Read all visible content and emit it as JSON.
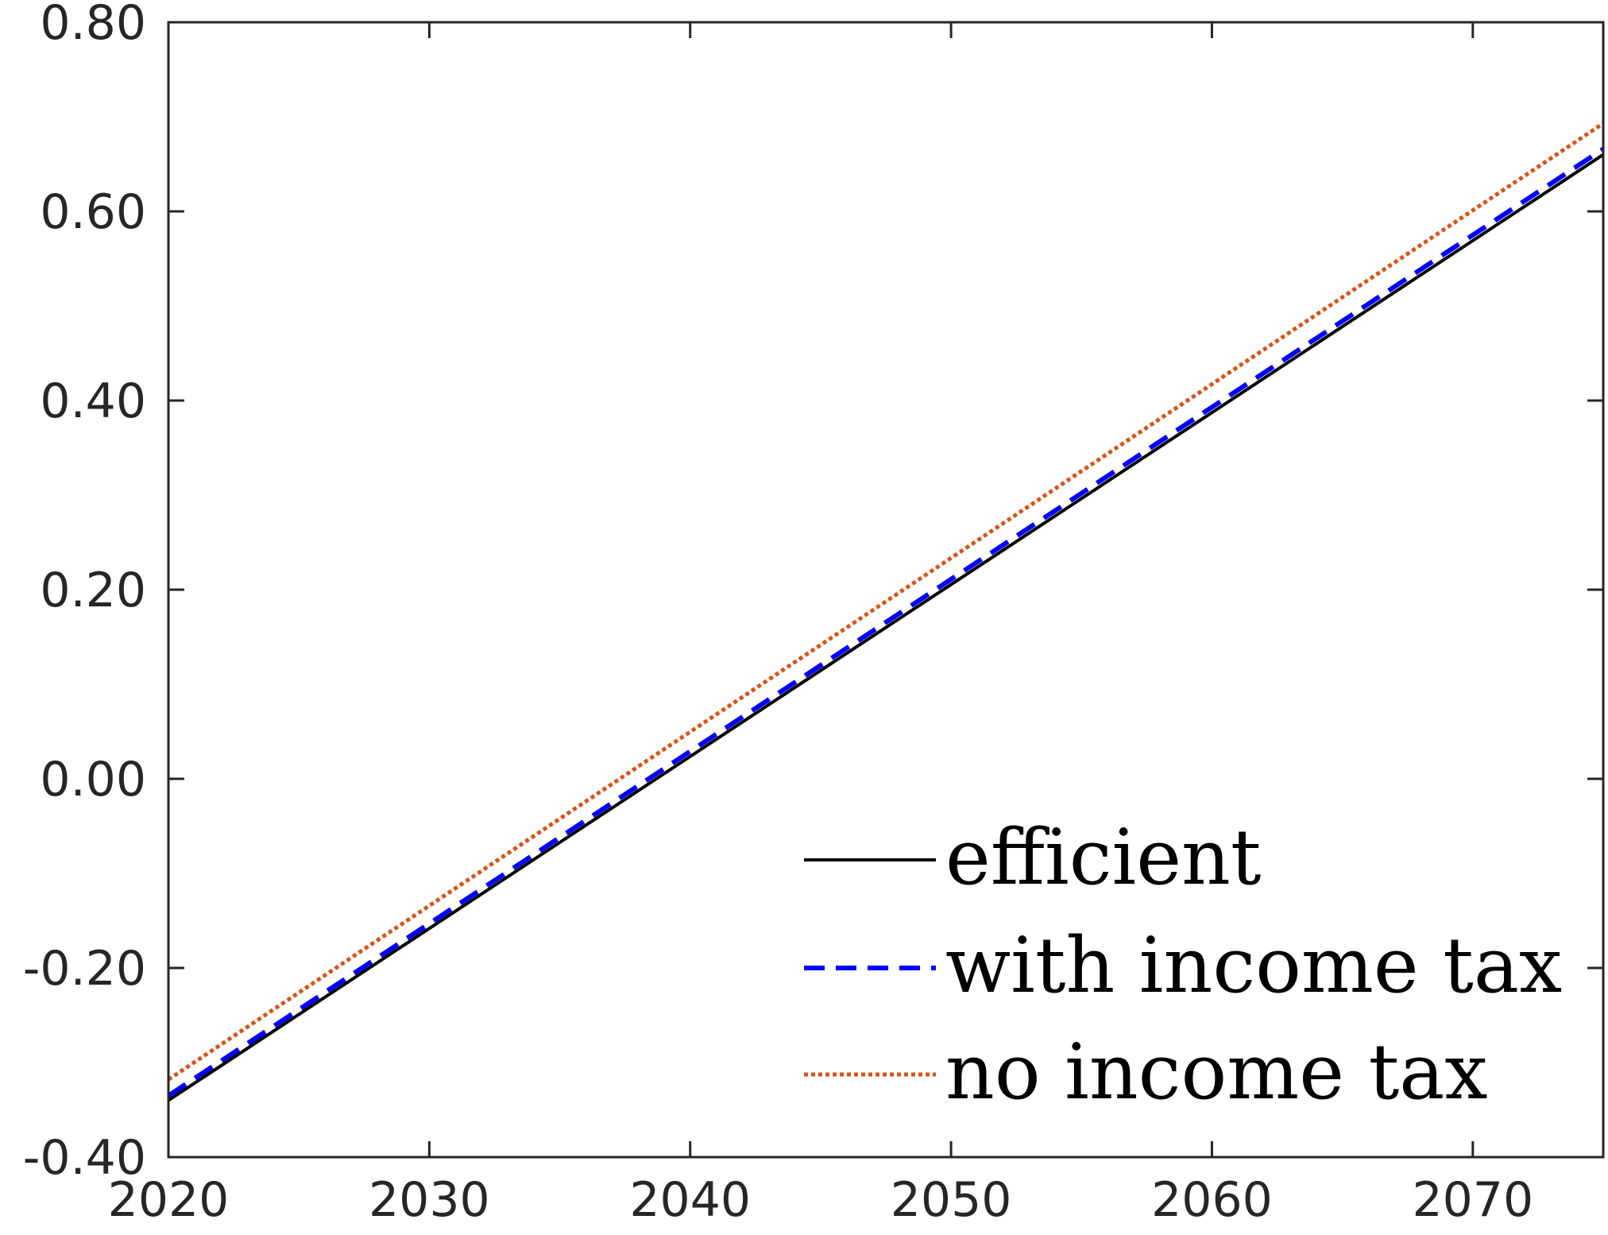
{
  "chart_data": {
    "type": "line",
    "title": "",
    "xlabel": "",
    "ylabel": "",
    "xlim": [
      2020,
      2075
    ],
    "ylim": [
      -0.4,
      0.8
    ],
    "xticks": [
      2020,
      2030,
      2040,
      2050,
      2060,
      2070
    ],
    "xtick_labels": [
      "2020",
      "2030",
      "2040",
      "2050",
      "2060",
      "2070"
    ],
    "yticks": [
      -0.4,
      -0.2,
      0.0,
      0.2,
      0.4,
      0.6,
      0.8
    ],
    "ytick_labels": [
      "-0.40",
      "-0.20",
      "0.00",
      "0.20",
      "0.40",
      "0.60",
      "0.80"
    ],
    "grid": false,
    "legend_position": "bottom-right",
    "series": [
      {
        "name": "efficient",
        "x": [
          2020,
          2075
        ],
        "y": [
          -0.34,
          0.66
        ],
        "color": "#000000",
        "style": "solid"
      },
      {
        "name": "with income tax",
        "x": [
          2020,
          2075
        ],
        "y": [
          -0.335,
          0.666
        ],
        "color": "#0000ff",
        "style": "dashed"
      },
      {
        "name": "no income tax",
        "x": [
          2020,
          2075
        ],
        "y": [
          -0.318,
          0.693
        ],
        "color": "#d95319",
        "style": "dotted"
      }
    ]
  }
}
